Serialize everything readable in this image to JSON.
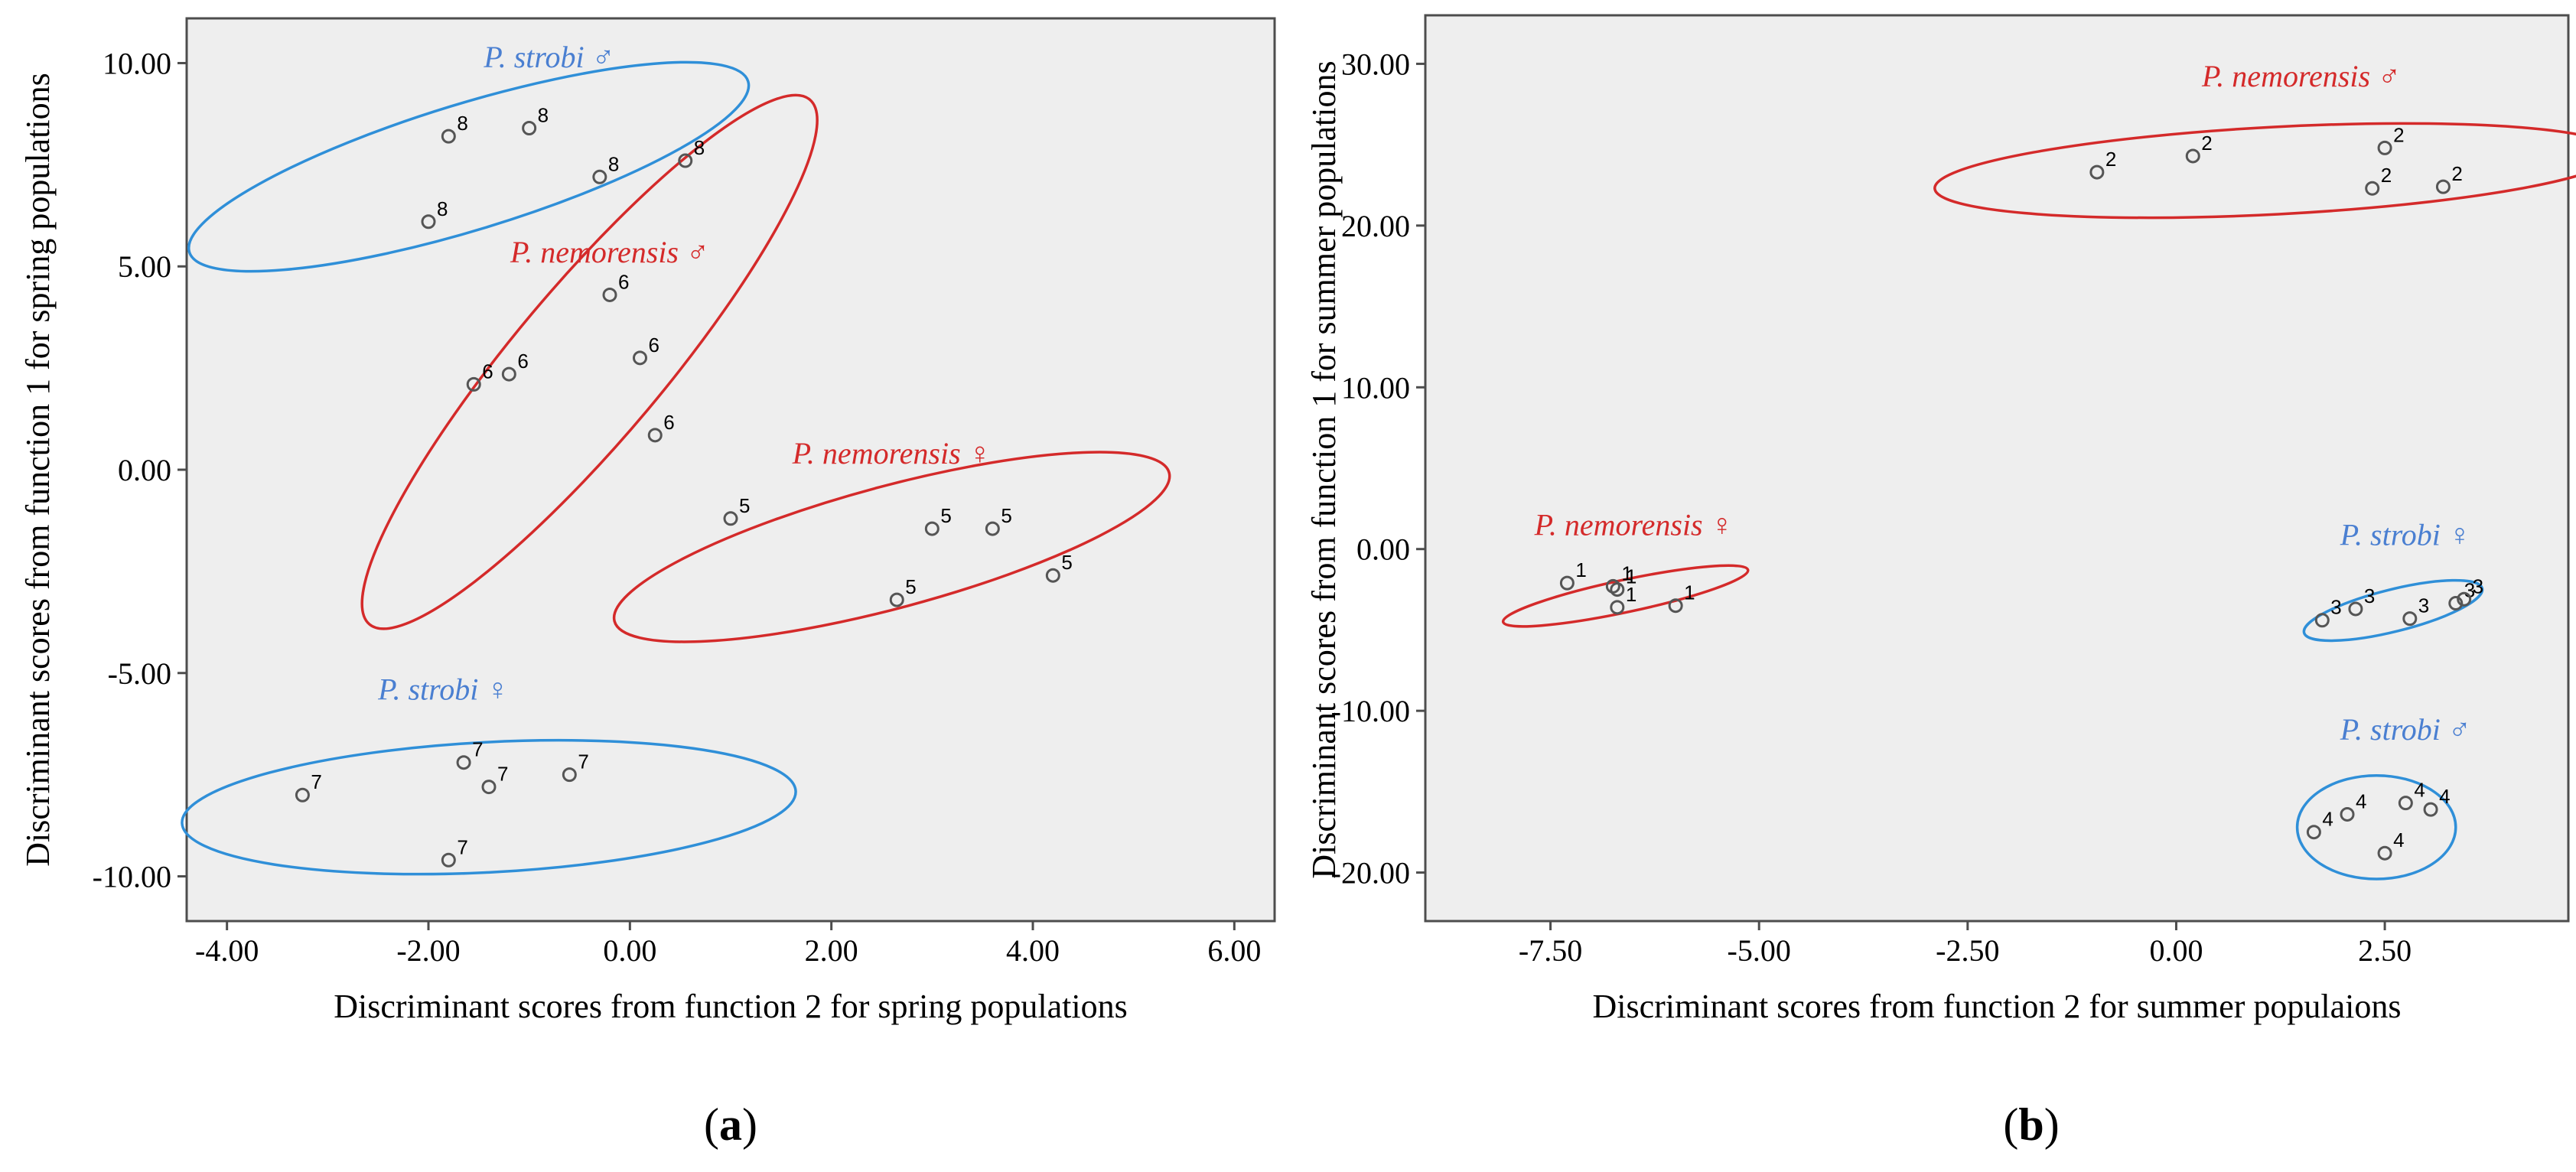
{
  "colors": {
    "plot_bg": "#eeeeee",
    "frame": "#4d4d4d",
    "red": "#d42a2a",
    "blue": "#2f8fd8",
    "blue_text": "#4a7fd1",
    "point": "#555555"
  },
  "chart_data": [
    {
      "type": "scatter",
      "panel_label": "(a)",
      "panel_letter": "a",
      "xlabel": "Discriminant scores from function 2 for spring populations",
      "ylabel": "Discriminant scores from function 1 for spring populations",
      "xlim": [
        -4.4,
        6.4
      ],
      "ylim": [
        -11.1,
        11.1
      ],
      "xticks": [
        -4,
        -2,
        0,
        2,
        4,
        6
      ],
      "xtick_labels": [
        "-4.00",
        "-2.00",
        "0.00",
        "2.00",
        "4.00",
        "6.00"
      ],
      "yticks": [
        -10,
        -5,
        0,
        5,
        10
      ],
      "ytick_labels": [
        "-10.00",
        "-5.00",
        "0.00",
        "5.00",
        "10.00"
      ],
      "groups": [
        {
          "name": "P. strobi ♂",
          "color": "blue",
          "label_anchor": [
            -0.8,
            9.9
          ],
          "ellipse": {
            "cx": -1.6,
            "cy": 7.45,
            "rx": 2.9,
            "ry": 1.55,
            "rot": -17
          },
          "points": [
            {
              "x": -1.8,
              "y": 8.2,
              "label": "8"
            },
            {
              "x": -1.0,
              "y": 8.4,
              "label": "8"
            },
            {
              "x": -0.3,
              "y": 7.2,
              "label": "8"
            },
            {
              "x": 0.55,
              "y": 7.6,
              "label": "8"
            },
            {
              "x": -2.0,
              "y": 6.1,
              "label": "8"
            }
          ]
        },
        {
          "name": "P. nemorensis ♂",
          "color": "red",
          "label_anchor": [
            -0.2,
            5.1
          ],
          "ellipse": {
            "cx": -0.4,
            "cy": 2.65,
            "rx": 3.4,
            "ry": 1.85,
            "rot": -50
          },
          "points": [
            {
              "x": -0.2,
              "y": 4.3,
              "label": "6"
            },
            {
              "x": 0.1,
              "y": 2.75,
              "label": "6"
            },
            {
              "x": -1.2,
              "y": 2.35,
              "label": "6"
            },
            {
              "x": -1.55,
              "y": 2.1,
              "label": "6"
            },
            {
              "x": 0.25,
              "y": 0.85,
              "label": "6"
            }
          ]
        },
        {
          "name": "P. nemorensis ♀",
          "color": "red",
          "label_anchor": [
            2.6,
            0.15
          ],
          "ellipse": {
            "cx": 2.6,
            "cy": -1.9,
            "rx": 2.85,
            "ry": 1.5,
            "rot": -15
          },
          "points": [
            {
              "x": 1.0,
              "y": -1.2,
              "label": "5"
            },
            {
              "x": 3.0,
              "y": -1.45,
              "label": "5"
            },
            {
              "x": 3.6,
              "y": -1.45,
              "label": "5"
            },
            {
              "x": 4.2,
              "y": -2.6,
              "label": "5"
            },
            {
              "x": 2.65,
              "y": -3.2,
              "label": "5"
            }
          ]
        },
        {
          "name": "P. strobi ♀",
          "color": "blue",
          "label_anchor": [
            -1.85,
            -5.65
          ],
          "ellipse": {
            "cx": -1.4,
            "cy": -8.3,
            "rx": 3.05,
            "ry": 1.6,
            "rot": -3
          },
          "points": [
            {
              "x": -3.25,
              "y": -8.0,
              "label": "7"
            },
            {
              "x": -1.65,
              "y": -7.2,
              "label": "7"
            },
            {
              "x": -1.4,
              "y": -7.8,
              "label": "7"
            },
            {
              "x": -0.6,
              "y": -7.5,
              "label": "7"
            },
            {
              "x": -1.8,
              "y": -9.6,
              "label": "7"
            }
          ]
        }
      ]
    },
    {
      "type": "scatter",
      "panel_label": "(b)",
      "panel_letter": "b",
      "xlabel": "Discriminant scores from function 2 for summer populaions",
      "ylabel": "Discriminant scores from function 1 for summer populations",
      "xlim": [
        -9.0,
        4.7
      ],
      "ylim": [
        -23.0,
        33.0
      ],
      "xticks": [
        -7.5,
        -5,
        -2.5,
        0,
        2.5
      ],
      "xtick_labels": [
        "-7.50",
        "-5.00",
        "-2.50",
        "0.00",
        "2.50"
      ],
      "yticks": [
        -20,
        -10,
        0,
        10,
        20,
        30
      ],
      "ytick_labels": [
        "-20.00",
        "-10.00",
        "0.00",
        "10.00",
        "20.00",
        "30.00"
      ],
      "groups": [
        {
          "name": "P. nemorensis ♂",
          "color": "red",
          "label_anchor": [
            1.5,
            28.6
          ],
          "ellipse": {
            "cx": 1.2,
            "cy": 23.4,
            "rx": 4.1,
            "ry": 2.7,
            "rot": -3
          },
          "points": [
            {
              "x": -0.95,
              "y": 23.3,
              "label": "2"
            },
            {
              "x": 0.2,
              "y": 24.3,
              "label": "2"
            },
            {
              "x": 2.5,
              "y": 24.8,
              "label": "2"
            },
            {
              "x": 2.35,
              "y": 22.3,
              "label": "2"
            },
            {
              "x": 3.2,
              "y": 22.4,
              "label": "2"
            }
          ]
        },
        {
          "name": "P. nemorensis ♀",
          "color": "red",
          "label_anchor": [
            -6.5,
            0.85
          ],
          "ellipse": {
            "cx": -6.6,
            "cy": -2.9,
            "rx": 1.5,
            "ry": 1.0,
            "rot": -12
          },
          "points": [
            {
              "x": -7.3,
              "y": -2.1,
              "label": "1"
            },
            {
              "x": -6.75,
              "y": -2.3,
              "label": "1"
            },
            {
              "x": -6.7,
              "y": -2.5,
              "label": "1"
            },
            {
              "x": -6.7,
              "y": -3.6,
              "label": "1"
            },
            {
              "x": -6.0,
              "y": -3.5,
              "label": "1"
            }
          ]
        },
        {
          "name": "P. strobi ♀",
          "color": "blue",
          "label_anchor": [
            2.75,
            0.25
          ],
          "ellipse": {
            "cx": 2.6,
            "cy": -3.8,
            "rx": 1.1,
            "ry": 1.3,
            "rot": -14
          },
          "points": [
            {
              "x": 1.75,
              "y": -4.4,
              "label": "3"
            },
            {
              "x": 2.15,
              "y": -3.7,
              "label": "3"
            },
            {
              "x": 2.8,
              "y": -4.3,
              "label": "3"
            },
            {
              "x": 3.35,
              "y": -3.35,
              "label": "3"
            },
            {
              "x": 3.45,
              "y": -3.1,
              "label": "3"
            }
          ]
        },
        {
          "name": "P. strobi ♂",
          "color": "blue",
          "label_anchor": [
            2.75,
            -11.8
          ],
          "ellipse": {
            "cx": 2.4,
            "cy": -17.2,
            "rx": 0.95,
            "ry": 3.2,
            "rot": 0
          },
          "points": [
            {
              "x": 1.65,
              "y": -17.5,
              "label": "4"
            },
            {
              "x": 2.05,
              "y": -16.4,
              "label": "4"
            },
            {
              "x": 2.75,
              "y": -15.7,
              "label": "4"
            },
            {
              "x": 3.05,
              "y": -16.1,
              "label": "4"
            },
            {
              "x": 2.5,
              "y": -18.8,
              "label": "4"
            }
          ]
        }
      ]
    }
  ]
}
